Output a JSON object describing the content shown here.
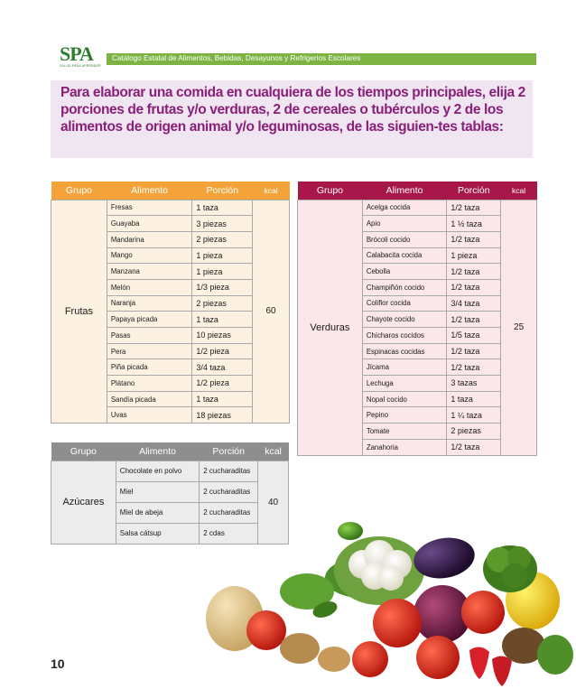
{
  "header": {
    "logo_text": "SPA",
    "logo_subtitle": "SALUD PARA APRENDER",
    "catalog_title": "Catálogo Estatal de Alimentos, Bebidas, Desayunos y Refrigerios Escolares"
  },
  "intro": {
    "text": "Para elaborar una comida en cualquiera de los tiempos principales, elija 2 porciones de frutas y/o verduras, 2 de cereales o tubérculos y 2 de los alimentos de origen animal y/o leguminosas, de las siguien-tes tablas:"
  },
  "frutas": {
    "headers": [
      "Grupo",
      "Alimento",
      "Porción",
      "kcal"
    ],
    "group": "Frutas",
    "kcal": "60",
    "rows": [
      [
        "Fresas",
        "1 taza"
      ],
      [
        "Guayaba",
        "3 piezas"
      ],
      [
        "Mandarina",
        "2 piezas"
      ],
      [
        "Mango",
        "1 pieza"
      ],
      [
        "Manzana",
        "1 pieza"
      ],
      [
        "Melón",
        "1/3 pieza"
      ],
      [
        "Naranja",
        "2 piezas"
      ],
      [
        "Papaya picada",
        "1 taza"
      ],
      [
        "Pasas",
        "10 piezas"
      ],
      [
        "Pera",
        "1/2 pieza"
      ],
      [
        "Piña picada",
        "3/4 taza"
      ],
      [
        "Plátano",
        "1/2 pieza"
      ],
      [
        "Sandía picada",
        "1 taza"
      ],
      [
        "Uvas",
        "18 piezas"
      ]
    ]
  },
  "verduras": {
    "headers": [
      "Grupo",
      "Alimento",
      "Porción",
      "kcal"
    ],
    "group": "Verduras",
    "kcal": "25",
    "rows": [
      [
        "Acelga cocida",
        "1/2 taza"
      ],
      [
        "Apio",
        "1 ½ taza"
      ],
      [
        "Brócoli cocido",
        "1/2 taza"
      ],
      [
        "Calabacita cocida",
        "1 pieza"
      ],
      [
        "Cebolla",
        "1/2 taza"
      ],
      [
        "Champiñón cocido",
        "1/2 taza"
      ],
      [
        "Coliflor cocida",
        "3/4 taza"
      ],
      [
        "Chayote cocido",
        "1/2 taza"
      ],
      [
        "Chícharos cocidos",
        "1/5 taza"
      ],
      [
        "Espinacas cocidas",
        "1/2 taza"
      ],
      [
        "Jícama",
        "1/2 taza"
      ],
      [
        "Lechuga",
        "3 tazas"
      ],
      [
        "Nopal cocido",
        "1 taza"
      ],
      [
        "Pepino",
        "1 ¼ taza"
      ],
      [
        "Tomate",
        "2 piezas"
      ],
      [
        "Zanahoria",
        "1/2 taza"
      ]
    ]
  },
  "azucares": {
    "headers": [
      "Grupo",
      "Alimento",
      "Porción",
      "kcal"
    ],
    "group": "Azúcares",
    "kcal": "40",
    "rows": [
      [
        "Chocolate en polvo",
        "2 cucharaditas"
      ],
      [
        "Miel",
        "2 cucharaditas"
      ],
      [
        "Miel de abeja",
        "2 cucharaditas"
      ],
      [
        "Salsa cátsup",
        "2 cdas"
      ]
    ]
  },
  "footer": {
    "page_number": "10"
  }
}
